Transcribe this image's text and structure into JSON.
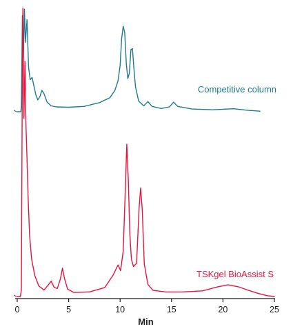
{
  "chart_data": {
    "type": "line",
    "title": "",
    "xlabel": "Min",
    "ylabel": "",
    "xlim": [
      0,
      25
    ],
    "x_ticks": [
      0,
      5,
      10,
      15,
      20,
      25
    ],
    "grid": false,
    "legend": "inline labels at the right end of each trace",
    "y_units": "relative absorbance (arbitrary)",
    "series": [
      {
        "name": "Competitive column",
        "color": "#1e7a8c",
        "points": [
          [
            0.0,
            0.0
          ],
          [
            0.35,
            0.0
          ],
          [
            0.4,
            0.6
          ],
          [
            0.5,
            9.0
          ],
          [
            0.6,
            5.0
          ],
          [
            0.7,
            9.6
          ],
          [
            0.8,
            6.5
          ],
          [
            0.95,
            8.6
          ],
          [
            1.1,
            4.2
          ],
          [
            1.25,
            3.0
          ],
          [
            1.45,
            3.2
          ],
          [
            1.6,
            2.5
          ],
          [
            1.8,
            1.6
          ],
          [
            2.0,
            1.1
          ],
          [
            2.2,
            1.4
          ],
          [
            2.4,
            2.0
          ],
          [
            2.6,
            1.7
          ],
          [
            2.9,
            0.9
          ],
          [
            3.3,
            0.55
          ],
          [
            3.8,
            0.45
          ],
          [
            5.0,
            0.42
          ],
          [
            6.5,
            0.5
          ],
          [
            8.0,
            0.85
          ],
          [
            9.0,
            1.3
          ],
          [
            9.5,
            2.0
          ],
          [
            9.8,
            2.9
          ],
          [
            10.0,
            4.3
          ],
          [
            10.15,
            6.8
          ],
          [
            10.3,
            8.0
          ],
          [
            10.45,
            7.4
          ],
          [
            10.6,
            4.5
          ],
          [
            10.75,
            3.1
          ],
          [
            10.9,
            3.6
          ],
          [
            11.05,
            5.8
          ],
          [
            11.2,
            5.9
          ],
          [
            11.35,
            4.0
          ],
          [
            11.5,
            2.3
          ],
          [
            11.8,
            1.0
          ],
          [
            12.3,
            0.55
          ],
          [
            12.7,
            0.95
          ],
          [
            13.1,
            0.5
          ],
          [
            14.0,
            0.3
          ],
          [
            14.8,
            0.45
          ],
          [
            15.2,
            0.9
          ],
          [
            15.6,
            0.5
          ],
          [
            17.0,
            0.25
          ],
          [
            19.0,
            0.18
          ],
          [
            21.0,
            0.28
          ],
          [
            22.5,
            0.12
          ],
          [
            23.6,
            0.05
          ]
        ]
      },
      {
        "name": "TSKgel BioAssist S",
        "color": "#e8143c",
        "points": [
          [
            0.0,
            0.0
          ],
          [
            0.3,
            0.0
          ],
          [
            0.4,
            0.4
          ],
          [
            0.48,
            12.0
          ],
          [
            0.55,
            17.8
          ],
          [
            0.65,
            11.0
          ],
          [
            0.75,
            14.5
          ],
          [
            0.85,
            10.5
          ],
          [
            0.95,
            8.5
          ],
          [
            1.05,
            6.2
          ],
          [
            1.2,
            3.8
          ],
          [
            1.4,
            2.3
          ],
          [
            1.7,
            1.3
          ],
          [
            2.1,
            0.65
          ],
          [
            2.6,
            0.4
          ],
          [
            3.0,
            0.7
          ],
          [
            3.3,
            0.95
          ],
          [
            3.6,
            0.55
          ],
          [
            3.9,
            0.5
          ],
          [
            4.2,
            1.1
          ],
          [
            4.4,
            1.75
          ],
          [
            4.6,
            1.1
          ],
          [
            4.9,
            0.45
          ],
          [
            5.5,
            0.25
          ],
          [
            7.0,
            0.28
          ],
          [
            8.5,
            0.55
          ],
          [
            9.3,
            1.3
          ],
          [
            9.8,
            1.95
          ],
          [
            10.05,
            1.6
          ],
          [
            10.3,
            2.8
          ],
          [
            10.5,
            6.5
          ],
          [
            10.65,
            9.4
          ],
          [
            10.8,
            7.2
          ],
          [
            10.95,
            3.8
          ],
          [
            11.1,
            2.3
          ],
          [
            11.3,
            1.85
          ],
          [
            11.6,
            2.05
          ],
          [
            11.85,
            5.5
          ],
          [
            12.0,
            6.7
          ],
          [
            12.15,
            5.4
          ],
          [
            12.35,
            2.0
          ],
          [
            12.7,
            0.75
          ],
          [
            13.2,
            0.38
          ],
          [
            14.5,
            0.28
          ],
          [
            16.0,
            0.28
          ],
          [
            18.0,
            0.35
          ],
          [
            19.5,
            0.6
          ],
          [
            20.5,
            0.72
          ],
          [
            21.5,
            0.6
          ],
          [
            22.5,
            0.38
          ],
          [
            23.5,
            0.18
          ],
          [
            24.3,
            0.05
          ],
          [
            25.0,
            0.0
          ]
        ]
      }
    ]
  }
}
